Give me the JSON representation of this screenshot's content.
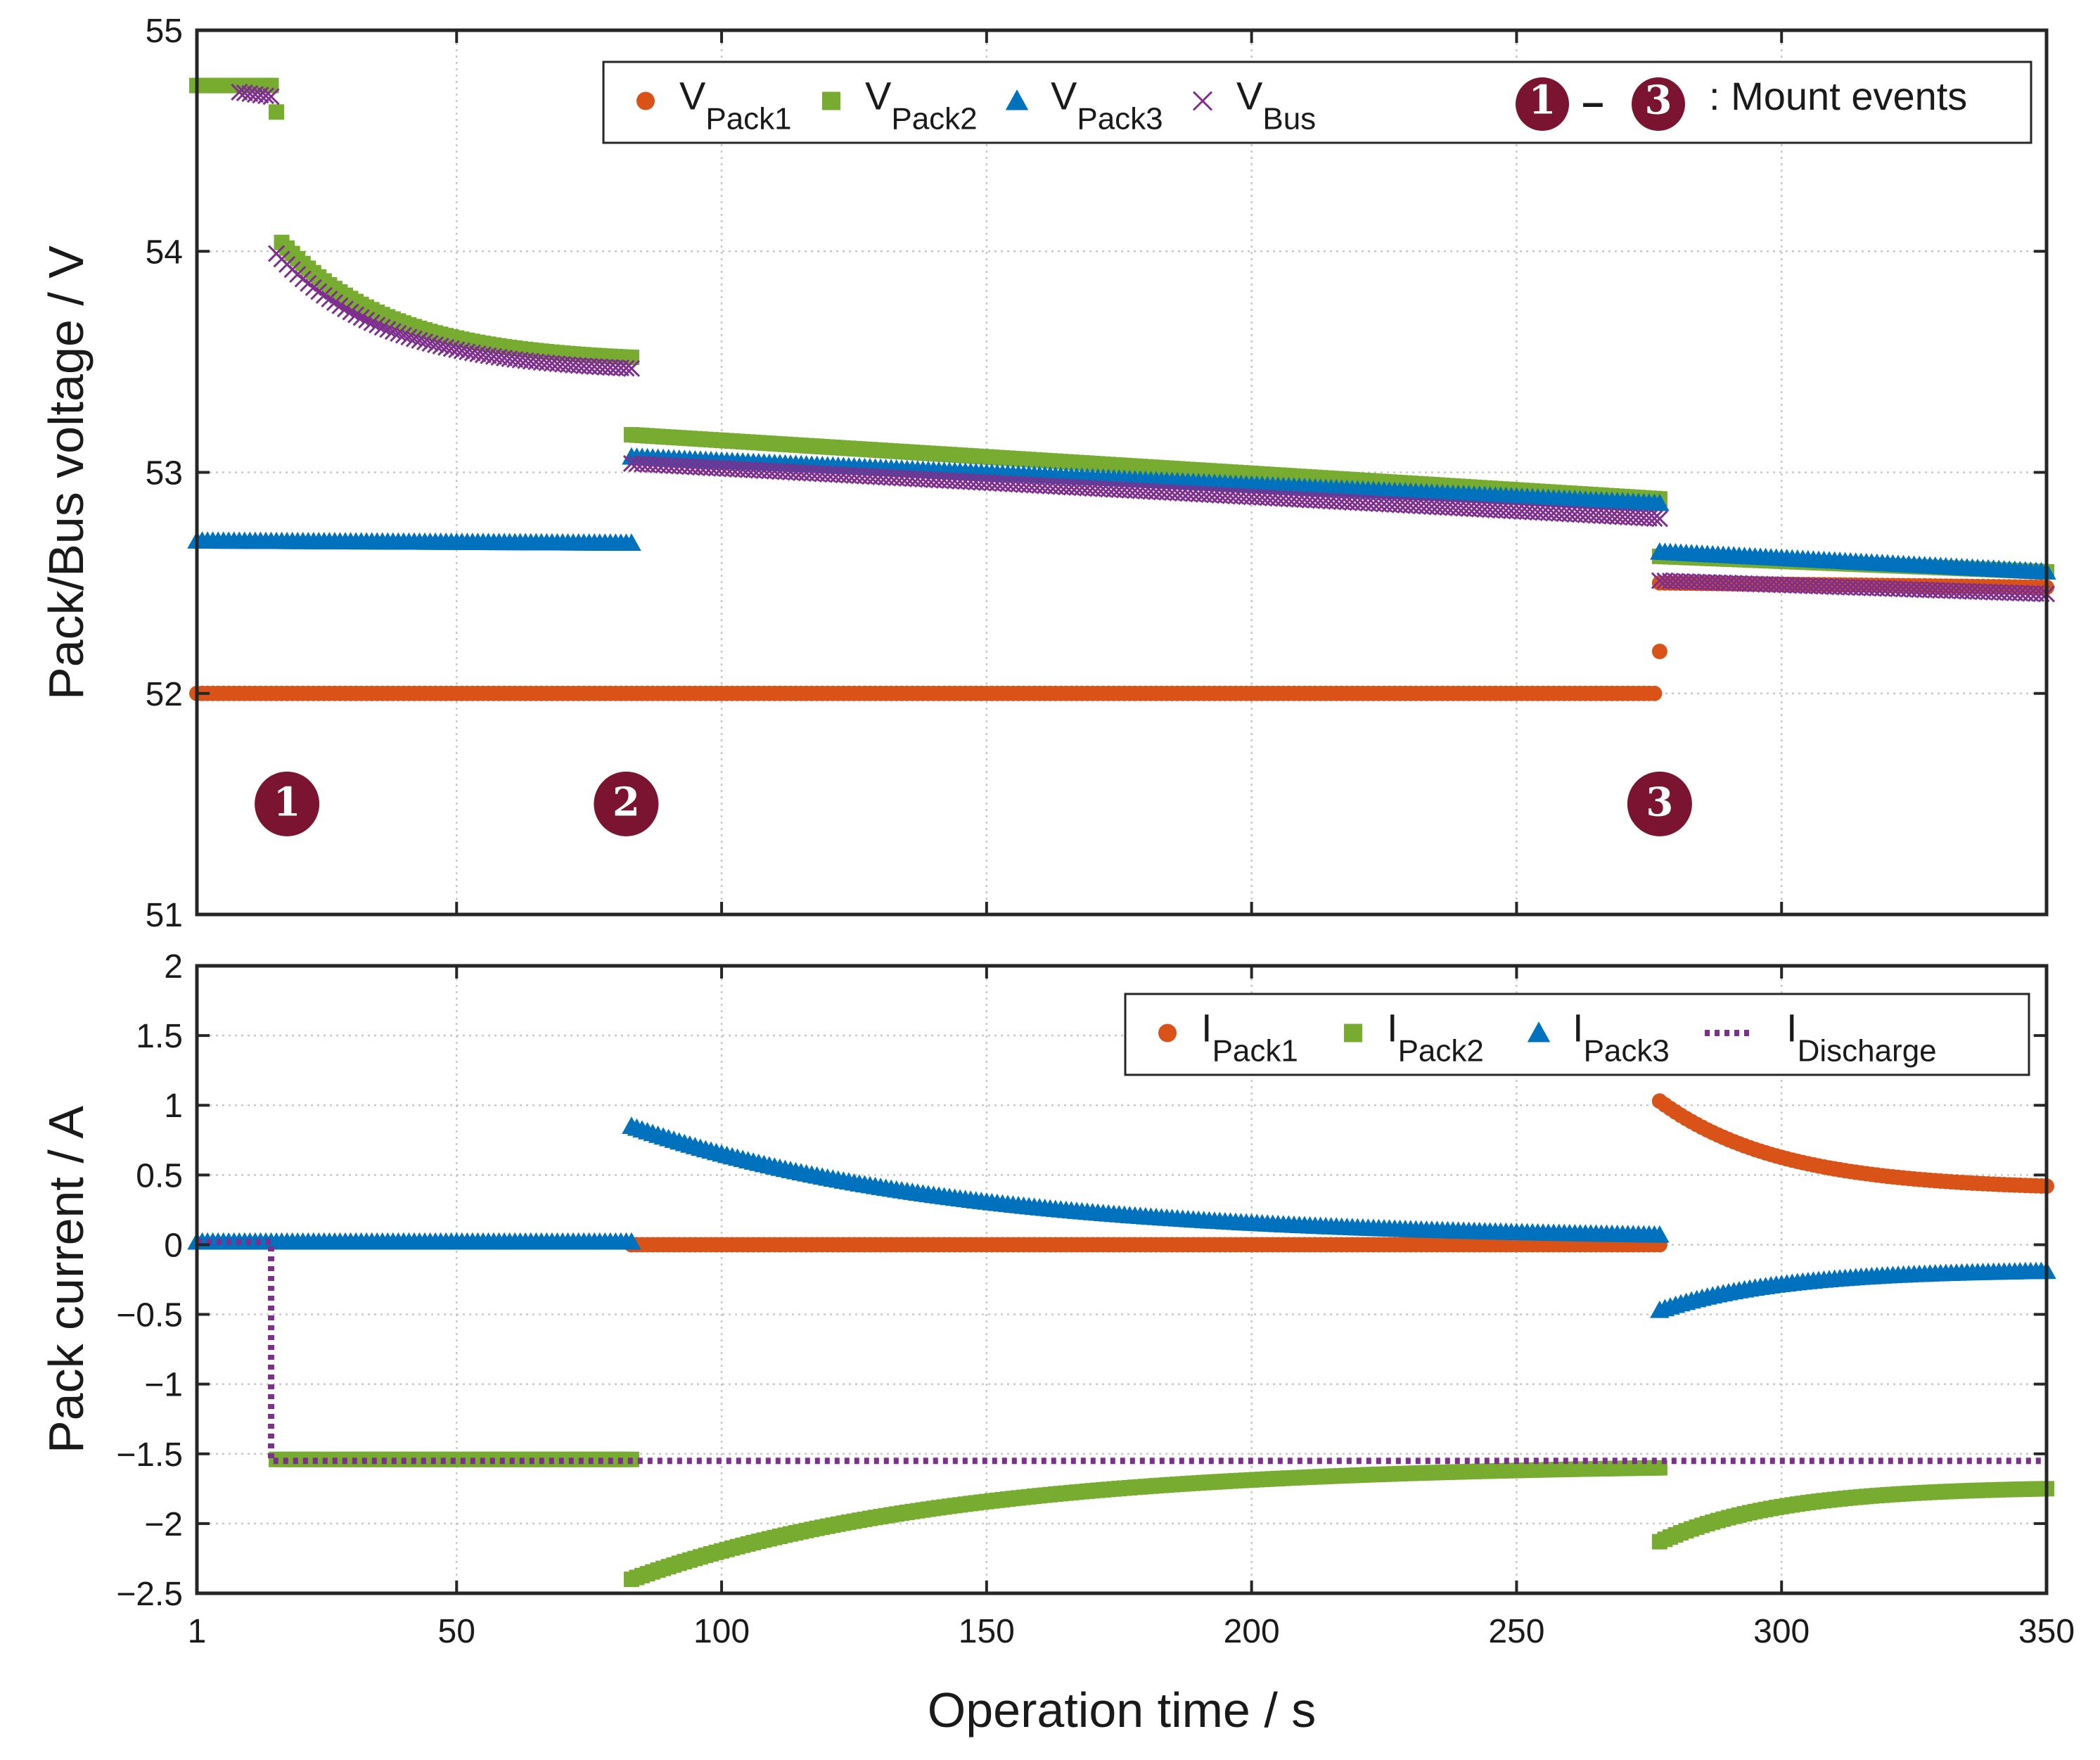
{
  "chart_data": [
    {
      "type": "scatter",
      "panel": "top",
      "ylabel": "Pack/Bus voltage / V",
      "xlim": [
        1,
        350
      ],
      "ylim": [
        51,
        55
      ],
      "yticks": [
        51,
        52,
        53,
        54,
        55
      ],
      "ytick_labels": [
        "51",
        "52",
        "53",
        "54",
        "55"
      ],
      "grid": true,
      "legend_position": "top-right",
      "legend_suffix": ": Mount events",
      "legend_event_range": [
        "1",
        "–",
        "3"
      ],
      "series": [
        {
          "name": "V",
          "sub": "Pack1",
          "marker": "circle",
          "color": "#D95319",
          "segments": [
            {
              "x": [
                1,
                276
              ],
              "y": [
                52.0,
                52.0
              ]
            },
            {
              "x": [
                277,
                350
              ],
              "y": [
                52.5,
                52.48
              ]
            }
          ],
          "points": [
            {
              "x": 277,
              "y": 52.19
            }
          ]
        },
        {
          "name": "V",
          "sub": "Pack2",
          "marker": "square",
          "color": "#77AC30",
          "segments": [
            {
              "x": [
                1,
                15
              ],
              "y": [
                54.75,
                54.75
              ]
            },
            {
              "x": [
                17,
                83
              ],
              "y": [
                54.04,
                53.52
              ],
              "decay": true
            },
            {
              "x": [
                83,
                277
              ],
              "y": [
                53.17,
                52.88
              ]
            },
            {
              "x": [
                277,
                350
              ],
              "y": [
                52.62,
                52.55
              ]
            }
          ],
          "points": [
            {
              "x": 16,
              "y": 54.63
            }
          ]
        },
        {
          "name": "V",
          "sub": "Pack3",
          "marker": "triangle",
          "color": "#0072BD",
          "segments": [
            {
              "x": [
                1,
                83
              ],
              "y": [
                52.69,
                52.68
              ]
            },
            {
              "x": [
                83,
                277
              ],
              "y": [
                53.07,
                52.86
              ]
            },
            {
              "x": [
                277,
                350
              ],
              "y": [
                52.64,
                52.55
              ]
            }
          ]
        },
        {
          "name": "V",
          "sub": "Bus",
          "marker": "x",
          "color": "#7E2F8E",
          "segments": [
            {
              "x": [
                9,
                15
              ],
              "y": [
                54.72,
                54.7
              ]
            },
            {
              "x": [
                16,
                83
              ],
              "y": [
                53.99,
                53.47
              ],
              "decay": true
            },
            {
              "x": [
                83,
                277
              ],
              "y": [
                53.04,
                52.79
              ]
            },
            {
              "x": [
                277,
                350
              ],
              "y": [
                52.51,
                52.45
              ]
            }
          ]
        }
      ],
      "annotations": [
        {
          "label": "1",
          "x": 18,
          "y": 51.5
        },
        {
          "label": "2",
          "x": 82,
          "y": 51.5
        },
        {
          "label": "3",
          "x": 277,
          "y": 51.5
        }
      ]
    },
    {
      "type": "scatter",
      "panel": "bottom",
      "title": "",
      "xlabel": "Operation time / s",
      "ylabel": "Pack current / A",
      "xlim": [
        1,
        350
      ],
      "xticks": [
        1,
        50,
        100,
        150,
        200,
        250,
        300,
        350
      ],
      "xtick_labels": [
        "1",
        "50",
        "100",
        "150",
        "200",
        "250",
        "300",
        "350"
      ],
      "ylim": [
        -2.5,
        2
      ],
      "yticks": [
        -2.5,
        -2,
        -1.5,
        -1,
        -0.5,
        0,
        0.5,
        1,
        1.5,
        2
      ],
      "ytick_labels": [
        "−2.5",
        "−2",
        "−1.5",
        "−1",
        "−0.5",
        "0",
        "0.5",
        "1",
        "1.5",
        "2"
      ],
      "grid": true,
      "legend_position": "top-right",
      "series": [
        {
          "name": "I",
          "sub": "Pack1",
          "marker": "circle",
          "color": "#D95319",
          "segments": [
            {
              "x": [
                83,
                277
              ],
              "y": [
                0.0,
                0.0
              ]
            },
            {
              "x": [
                277,
                350
              ],
              "y": [
                1.03,
                0.42
              ],
              "decay": true
            }
          ]
        },
        {
          "name": "I",
          "sub": "Pack2",
          "marker": "square",
          "color": "#77AC30",
          "segments": [
            {
              "x": [
                16,
                83
              ],
              "y": [
                -1.54,
                -1.54
              ]
            },
            {
              "x": [
                83,
                277
              ],
              "y": [
                -2.4,
                -1.6
              ],
              "decay": true
            },
            {
              "x": [
                277,
                350
              ],
              "y": [
                -2.13,
                -1.75
              ],
              "decay": true
            }
          ]
        },
        {
          "name": "I",
          "sub": "Pack3",
          "marker": "triangle",
          "color": "#0072BD",
          "segments": [
            {
              "x": [
                1,
                83
              ],
              "y": [
                0.02,
                0.02
              ]
            },
            {
              "x": [
                83,
                277
              ],
              "y": [
                0.85,
                0.07
              ],
              "decay": true
            },
            {
              "x": [
                277,
                350
              ],
              "y": [
                -0.47,
                -0.19
              ],
              "decay": true
            }
          ]
        },
        {
          "name": "I",
          "sub": "Discharge",
          "marker": "dotted-line",
          "color": "#7E2F8E",
          "line": [
            {
              "x": 1,
              "y": 0.02
            },
            {
              "x": 15,
              "y": 0.02
            },
            {
              "x": 15,
              "y": -1.55
            },
            {
              "x": 83,
              "y": -1.55
            },
            {
              "x": 277,
              "y": -1.55
            },
            {
              "x": 350,
              "y": -1.55
            }
          ]
        }
      ]
    }
  ]
}
